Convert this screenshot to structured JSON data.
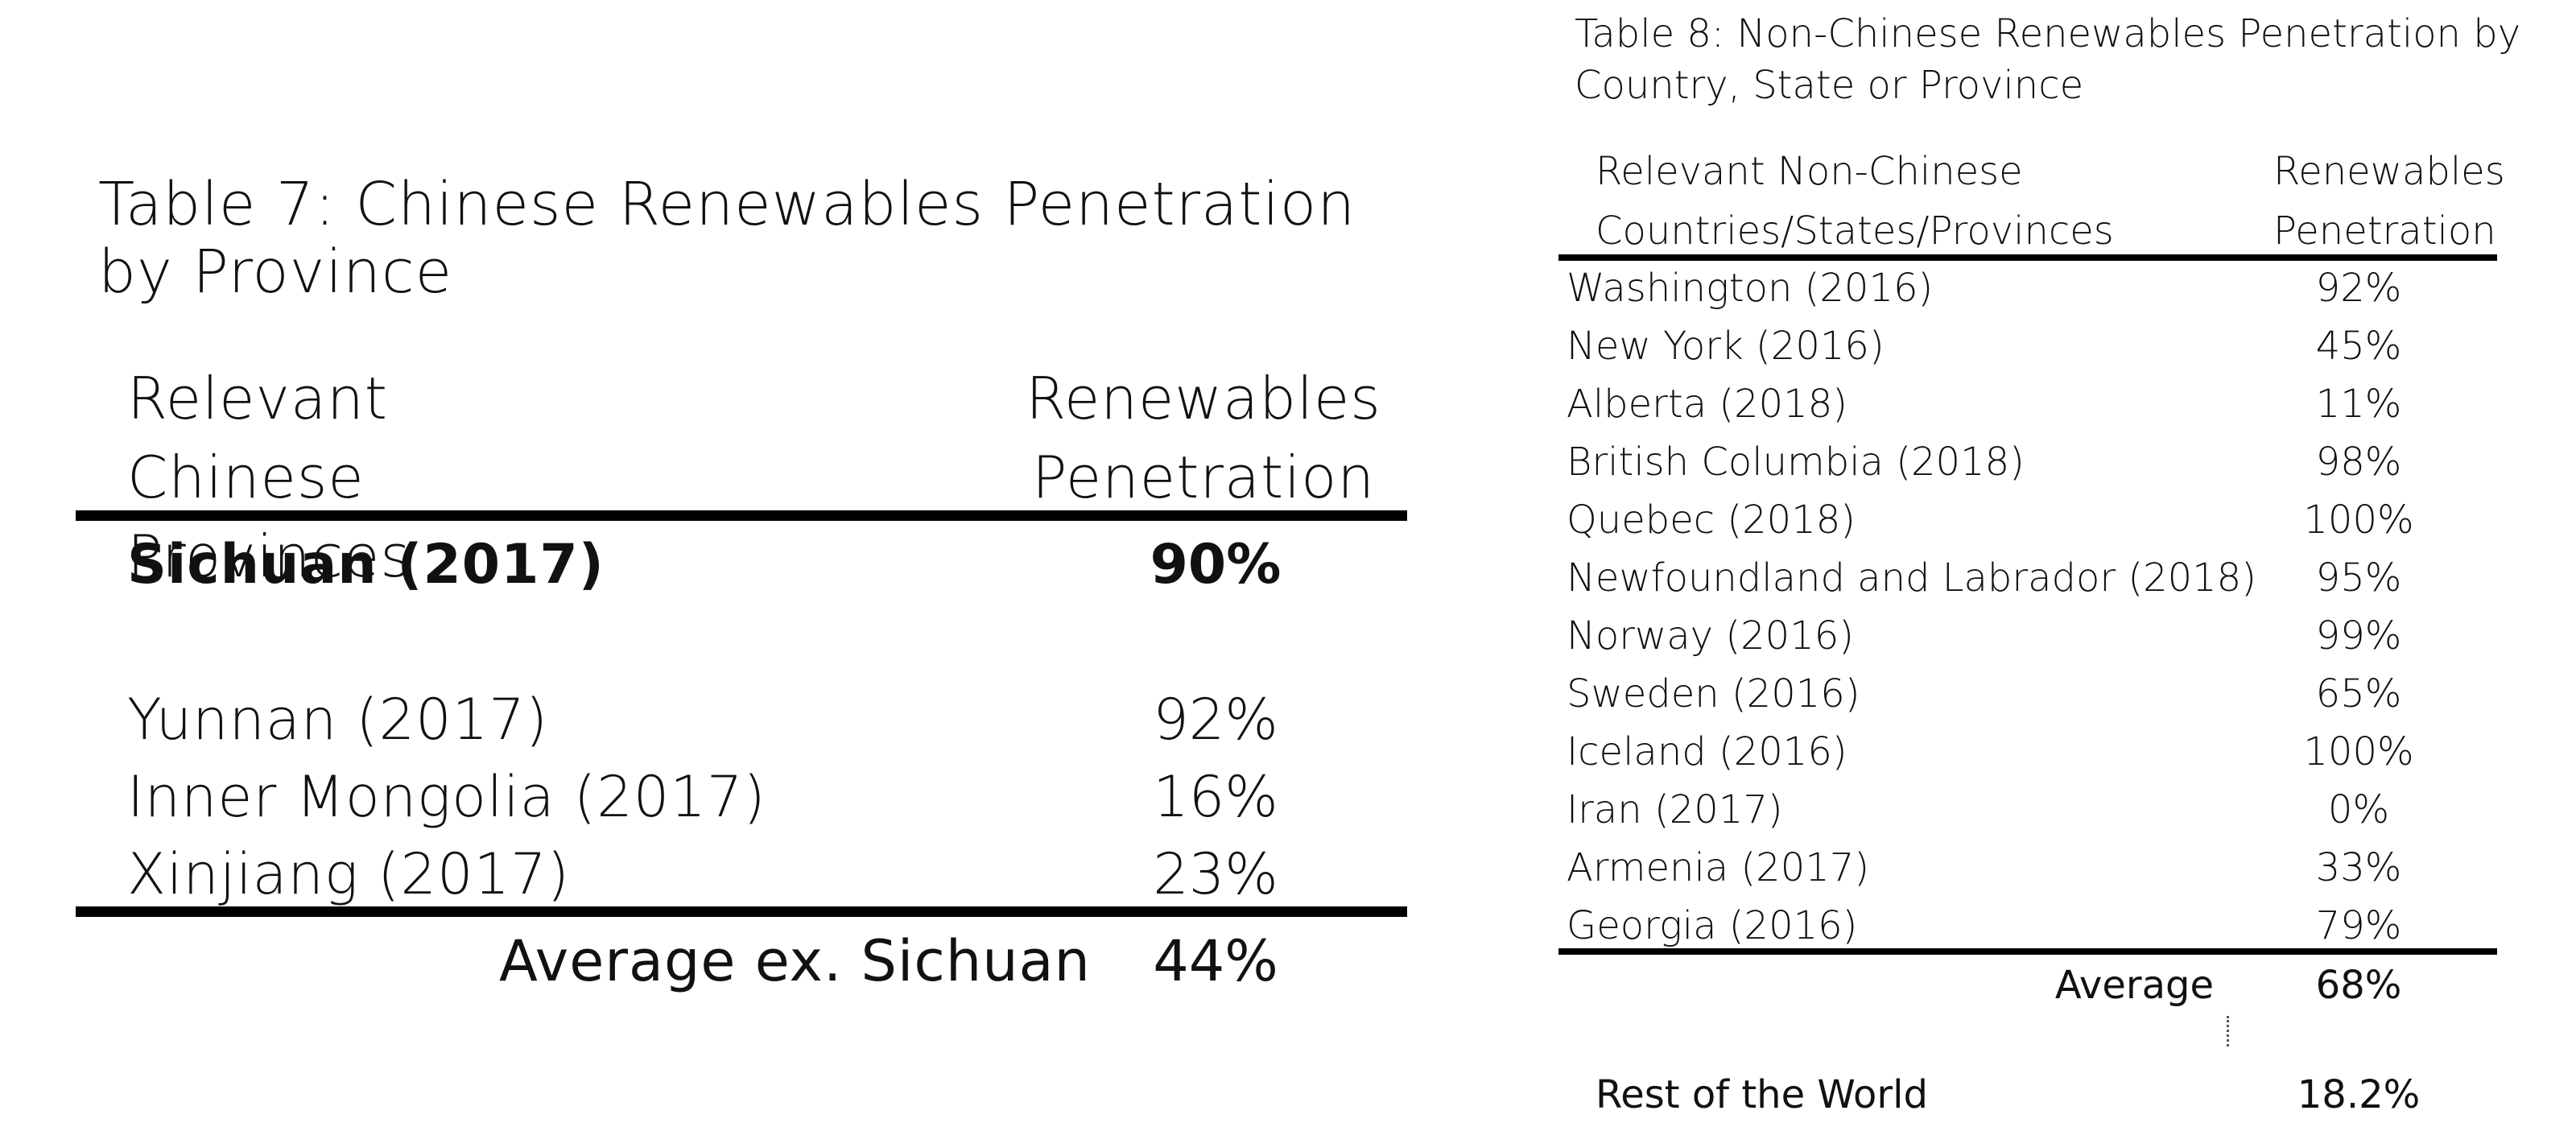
{
  "table7": {
    "title": "Table 7: Chinese Renewables Penetration by Province",
    "header_col1": "Relevant Chinese Provinces",
    "header_col2": "Renewables Penetration",
    "highlight_row": {
      "name": "Sichuan (2017)",
      "value": "90%"
    },
    "rows": [
      {
        "name": "Yunnan (2017)",
        "value": "92%"
      },
      {
        "name": "Inner Mongolia (2017)",
        "value": "16%"
      },
      {
        "name": "Xinjiang (2017)",
        "value": "23%"
      }
    ],
    "average": {
      "label": "Average ex. Sichuan",
      "value": "44%"
    }
  },
  "table8": {
    "title": "Table 8: Non-Chinese Renewables Penetration by Country, State or Province",
    "header_col1": "Relevant Non-Chinese Countries/States/Provinces",
    "header_col2": "Renewables Penetration",
    "rows": [
      {
        "name": "Washington (2016)",
        "value": "92%"
      },
      {
        "name": "New York (2016)",
        "value": "45%"
      },
      {
        "name": "Alberta (2018)",
        "value": "11%"
      },
      {
        "name": "British Columbia (2018)",
        "value": "98%"
      },
      {
        "name": "Quebec (2018)",
        "value": "100%"
      },
      {
        "name": "Newfoundland and Labrador (2018)",
        "value": "95%"
      },
      {
        "name": "Norway (2016)",
        "value": "99%"
      },
      {
        "name": "Sweden (2016)",
        "value": "65%"
      },
      {
        "name": "Iceland (2016)",
        "value": "100%"
      },
      {
        "name": "Iran (2017)",
        "value": "0%"
      },
      {
        "name": "Armenia (2017)",
        "value": "33%"
      },
      {
        "name": "Georgia (2016)",
        "value": "79%"
      }
    ],
    "average": {
      "label": "Average",
      "value": "68%"
    },
    "rest_of_world": {
      "label": "Rest of the World",
      "value": "18.2%"
    }
  }
}
